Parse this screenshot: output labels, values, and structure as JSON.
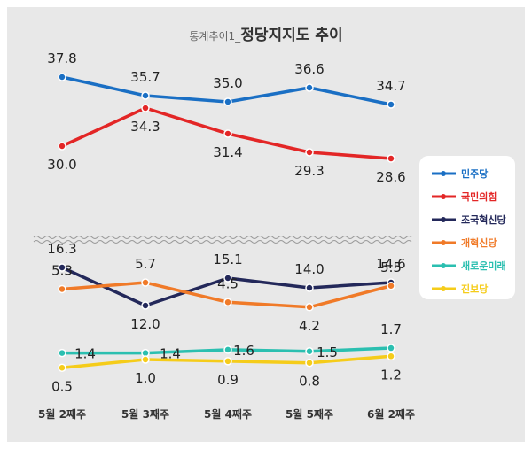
{
  "chart_data": {
    "type": "line",
    "title_prefix": "통계추이1_",
    "title_main": "정당지지도 추이",
    "categories": [
      "5월 2째주",
      "5월 3째주",
      "5월 4째주",
      "5월 5째주",
      "6월 2째주"
    ],
    "axis_break": true,
    "grid": false,
    "legend_position": "right",
    "series": [
      {
        "name": "민주당",
        "color": "#1a6fc4",
        "values": [
          37.8,
          35.7,
          35.0,
          36.6,
          34.7
        ],
        "labels": [
          "37.8",
          "35.7",
          "35.0",
          "36.6",
          "34.7"
        ]
      },
      {
        "name": "국민의힘",
        "color": "#e32626",
        "values": [
          30.0,
          34.3,
          31.4,
          29.3,
          28.6
        ],
        "labels": [
          "30.0",
          "34.3",
          "31.4",
          "29.3",
          "28.6"
        ]
      },
      {
        "name": "조국혁신당",
        "color": "#23285a",
        "values": [
          16.3,
          12.0,
          15.1,
          14.0,
          14.6
        ],
        "labels": [
          "16.3",
          "12.0",
          "15.1",
          "14.0",
          "14.6"
        ]
      },
      {
        "name": "개혁신당",
        "color": "#f07a28",
        "values": [
          5.3,
          5.7,
          4.5,
          4.2,
          5.5
        ],
        "labels": [
          "5.3",
          "5.7",
          "4.5",
          "4.2",
          "5.5"
        ]
      },
      {
        "name": "새로운미래",
        "color": "#2bbfb0",
        "values": [
          1.4,
          1.4,
          1.6,
          1.5,
          1.7
        ],
        "labels": [
          "1.4",
          "1.4",
          "1.6",
          "1.5",
          "1.7"
        ]
      },
      {
        "name": "진보당",
        "color": "#f5cc1a",
        "values": [
          0.5,
          1.0,
          0.9,
          0.8,
          1.2
        ],
        "labels": [
          "0.5",
          "1.0",
          "0.9",
          "0.8",
          "1.2"
        ]
      }
    ]
  }
}
